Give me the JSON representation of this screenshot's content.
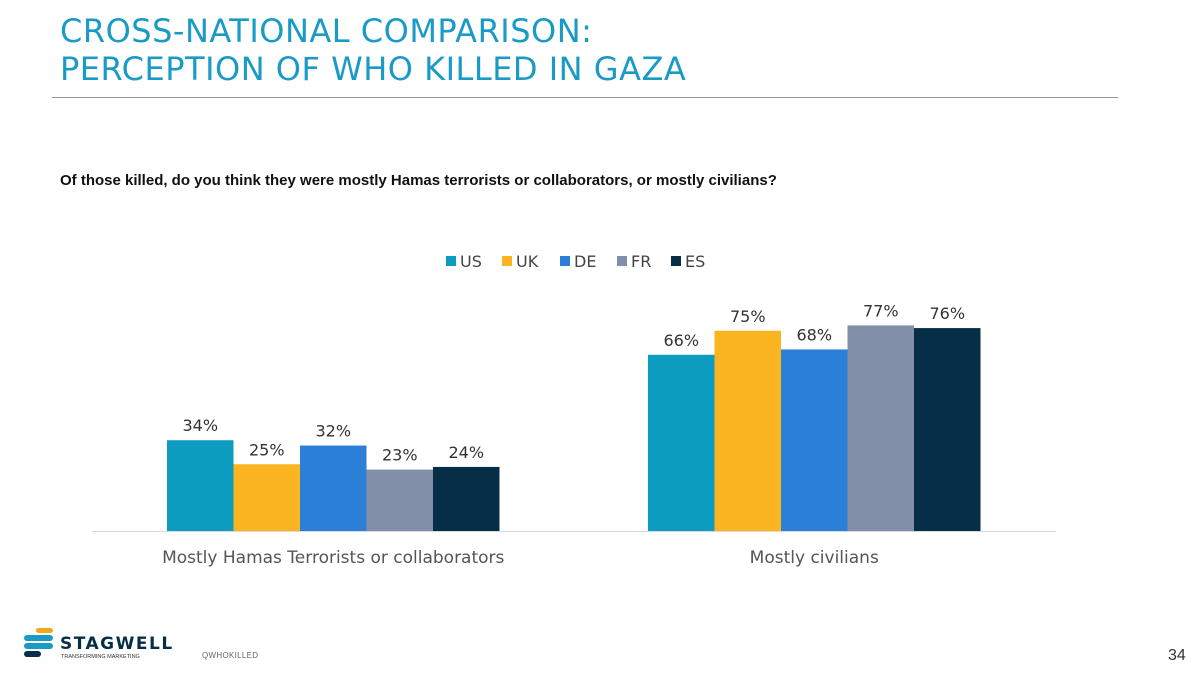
{
  "title": {
    "line1": "CROSS-NATIONAL COMPARISON:",
    "line2": "PERCEPTION OF WHO KILLED IN GAZA"
  },
  "question": "Of those killed, do you think they were mostly Hamas terrorists or collaborators, or mostly civilians?",
  "chart_data": {
    "type": "bar",
    "title": "",
    "xlabel": "",
    "ylabel": "",
    "ylim": [
      0,
      100
    ],
    "grid": false,
    "legend_position": "top-center",
    "categories": [
      "Mostly Hamas Terrorists or collaborators",
      "Mostly civilians"
    ],
    "series": [
      {
        "name": "US",
        "color": "#0b9cc0",
        "values": [
          34,
          66
        ],
        "labels": [
          "34%",
          "66%"
        ]
      },
      {
        "name": "UK",
        "color": "#fbb521",
        "values": [
          25,
          75
        ],
        "labels": [
          "25%",
          "75%"
        ]
      },
      {
        "name": "DE",
        "color": "#2b7fd6",
        "values": [
          32,
          68
        ],
        "labels": [
          "32%",
          "68%"
        ]
      },
      {
        "name": "FR",
        "color": "#8190a8",
        "values": [
          23,
          77
        ],
        "labels": [
          "23%",
          "77%"
        ]
      },
      {
        "name": "ES",
        "color": "#062f47",
        "values": [
          24,
          76
        ],
        "labels": [
          "24%",
          "76%"
        ]
      }
    ]
  },
  "brand": {
    "name": "STAGWELL",
    "tagline": "TRANSFORMING MARKETING"
  },
  "footnote": "QWHOKILLED",
  "page_number": "34"
}
